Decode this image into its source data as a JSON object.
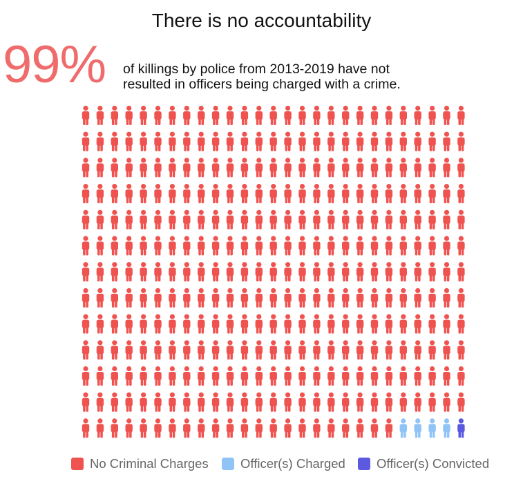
{
  "title": "There is no accountability",
  "stat": {
    "value": "99%",
    "caption_line1": "of killings by police from 2013-2019 have not",
    "caption_line2": "resulted in officers being charged with a crime."
  },
  "colors": {
    "no_charges": "#ef5350",
    "charged": "#90c4f6",
    "convicted": "#5a59e0",
    "accent_text": "#f06b6b"
  },
  "chart_data": {
    "type": "icon-array (waffle)",
    "icon": "person-icon",
    "grid": {
      "columns": 27,
      "rows": 13,
      "total": 351
    },
    "series": [
      {
        "name": "No Criminal Charges",
        "count": 346
      },
      {
        "name": "Officer(s) Charged",
        "count": 4
      },
      {
        "name": "Officer(s) Convicted",
        "count": 1
      }
    ],
    "legend_position": "bottom"
  },
  "legend": [
    {
      "label": "No Criminal Charges",
      "color": "#ef5350"
    },
    {
      "label": "Officer(s) Charged",
      "color": "#90c4f6"
    },
    {
      "label": "Officer(s) Convicted",
      "color": "#5a59e0"
    }
  ]
}
